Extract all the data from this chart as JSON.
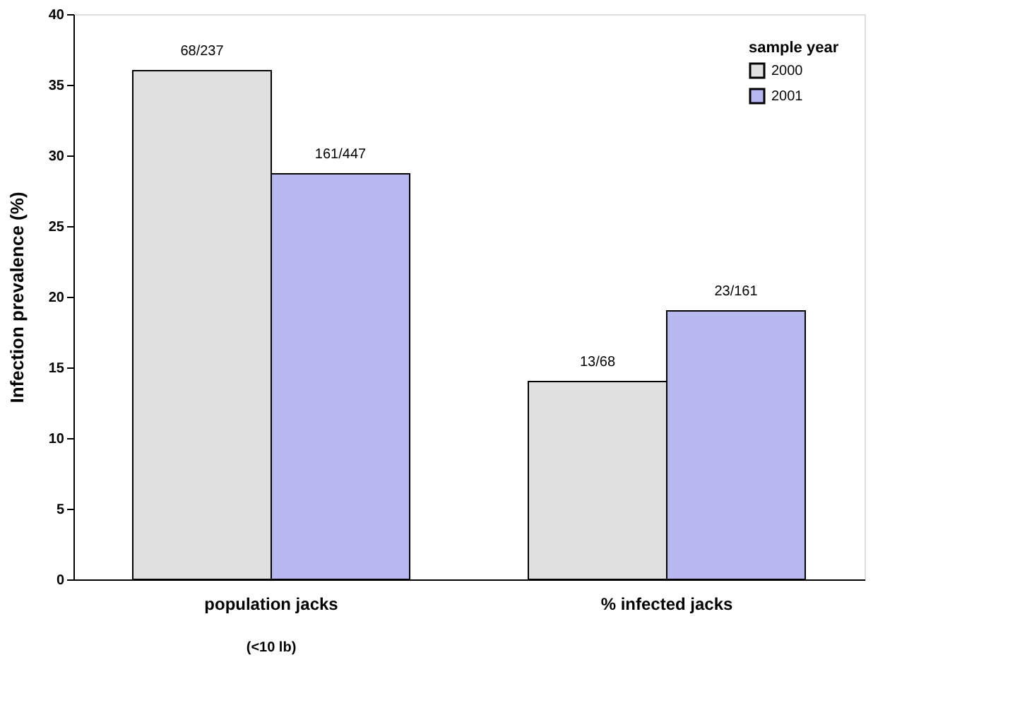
{
  "chart_data": {
    "type": "bar",
    "ylabel": "Infection prevalence  (%)",
    "legend_title": "sample year",
    "legend": "top right",
    "categories": [
      "population jacks",
      "% infected jacks"
    ],
    "series": [
      {
        "name": "2000",
        "color": "#e0e0e0",
        "values": [
          36,
          14
        ],
        "value_labels": [
          "68/237",
          "13/68"
        ]
      },
      {
        "name": "2001",
        "color": "#b8b8f0",
        "values": [
          28.7,
          19
        ],
        "value_labels": [
          "161/447",
          "23/161"
        ]
      }
    ],
    "ylim": [
      0,
      40
    ],
    "yticks": [
      0,
      5,
      10,
      15,
      20,
      25,
      30,
      35,
      40
    ],
    "grid": false,
    "annotations": [
      "(<10 lb)"
    ]
  }
}
